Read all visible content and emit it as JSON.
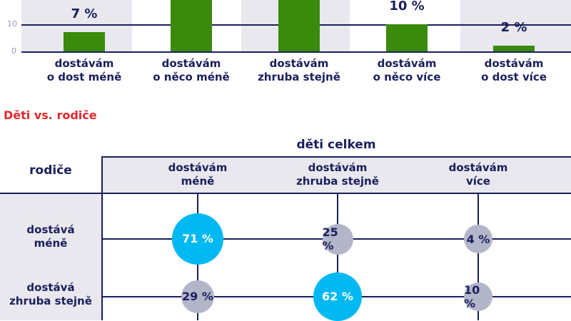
{
  "chart_data": [
    {
      "type": "bar",
      "categories": [
        "dostávám\no dost méně",
        "dostávám\no něco méně",
        "dostávám\nzhruba stejně",
        "dostávám\no něco více",
        "dostávám\no dost více"
      ],
      "values": [
        7,
        null,
        null,
        10,
        2
      ],
      "value_labels": [
        "7 %",
        "",
        "",
        "10 %",
        "2 %"
      ],
      "yticks": [
        "0",
        "10"
      ],
      "ylim": [
        0,
        20
      ],
      "color": "#3a8a0c",
      "grid": true
    },
    {
      "type": "table",
      "title": "Děti vs. rodiče",
      "column_group": "děti celkem",
      "row_group": "rodiče",
      "columns": [
        "dostávám\nméně",
        "dostávám\nzhruba stejně",
        "dostávám\nvíce"
      ],
      "rows": [
        {
          "label": "dostává\nméně",
          "values": [
            71,
            25,
            4
          ],
          "labels": [
            "71 %",
            "25 %",
            "4 %"
          ]
        },
        {
          "label": "dostává\nzhruba stejně",
          "values": [
            29,
            62,
            10
          ],
          "labels": [
            "29 %",
            "62 %",
            "10 %"
          ]
        }
      ],
      "highlight_color": "#00b9f2",
      "bubble_color": "#b3b5c9"
    }
  ]
}
